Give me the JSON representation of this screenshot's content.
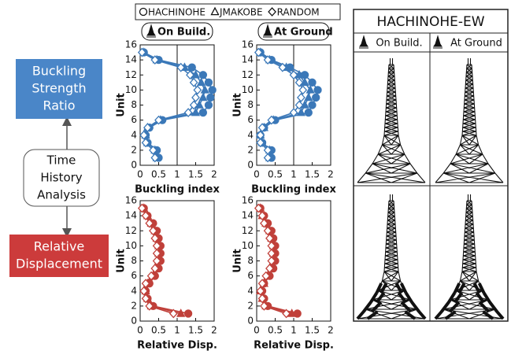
{
  "diagram": {
    "nodes": [
      {
        "label": [
          "Buckling",
          "Strength",
          "Ratio"
        ],
        "color": "#4a86c8"
      },
      {
        "label": [
          "Time",
          "History",
          "Analysis"
        ]
      },
      {
        "label": [
          "Relative",
          "Displacement"
        ],
        "color": "#cc3b3b"
      }
    ]
  },
  "chart_data": [
    {
      "type": "line",
      "title": "On Build.",
      "x_label": "Buckling index",
      "y_label": "Unit",
      "y": [
        1,
        2,
        3,
        4,
        5,
        6,
        7,
        8,
        9,
        10,
        11,
        12,
        13,
        14,
        15
      ],
      "xlim": [
        0,
        2
      ],
      "xticks": [
        0,
        0.5,
        1,
        1.5,
        2
      ],
      "ylim": [
        0,
        16
      ],
      "yticks": [
        0,
        2,
        4,
        6,
        8,
        10,
        12,
        14,
        16
      ],
      "reference_line": 1,
      "series": [
        {
          "name": "HACHINOHE",
          "color": "#3b78b8",
          "marker": "circle",
          "filled": true,
          "values": [
            0.5,
            0.45,
            0.2,
            0.15,
            0.25,
            0.6,
            1.7,
            1.85,
            1.9,
            1.95,
            1.85,
            1.7,
            1.4,
            0.5,
            0.1
          ]
        },
        {
          "name": "JMAKOBE",
          "color": "#3b78b8",
          "marker": "triangle",
          "filled": true,
          "values": [
            0.45,
            0.4,
            0.2,
            0.15,
            0.2,
            0.55,
            1.5,
            1.6,
            1.7,
            1.75,
            1.65,
            1.5,
            1.2,
            0.45,
            0.1
          ]
        },
        {
          "name": "RANDOM",
          "color": "#3b78b8",
          "marker": "diamond",
          "filled": false,
          "values": [
            0.4,
            0.35,
            0.15,
            0.1,
            0.2,
            0.5,
            1.3,
            1.45,
            1.5,
            1.55,
            1.45,
            1.35,
            1.1,
            0.4,
            0.05
          ]
        }
      ]
    },
    {
      "type": "line",
      "title": "At Ground",
      "x_label": "Buckling index",
      "y_label": "Unit",
      "y": [
        1,
        2,
        3,
        4,
        5,
        6,
        7,
        8,
        9,
        10,
        11,
        12,
        13,
        14,
        15
      ],
      "xlim": [
        0,
        2
      ],
      "xticks": [
        0,
        0.5,
        1,
        1.5,
        2
      ],
      "ylim": [
        0,
        16
      ],
      "yticks": [
        0,
        2,
        4,
        6,
        8,
        10,
        12,
        14,
        16
      ],
      "reference_line": 1,
      "series": [
        {
          "name": "HACHINOHE",
          "color": "#3b78b8",
          "marker": "circle",
          "filled": true,
          "values": [
            0.4,
            0.4,
            0.15,
            0.1,
            0.2,
            0.5,
            1.4,
            1.5,
            1.6,
            1.65,
            1.5,
            1.3,
            0.9,
            0.4,
            0.1
          ]
        },
        {
          "name": "JMAKOBE",
          "color": "#3b78b8",
          "marker": "triangle",
          "filled": true,
          "values": [
            0.35,
            0.35,
            0.15,
            0.1,
            0.2,
            0.45,
            1.2,
            1.3,
            1.4,
            1.45,
            1.3,
            1.15,
            0.8,
            0.35,
            0.1
          ]
        },
        {
          "name": "RANDOM",
          "color": "#3b78b8",
          "marker": "diamond",
          "filled": false,
          "values": [
            0.3,
            0.3,
            0.1,
            0.1,
            0.15,
            0.4,
            1.0,
            1.15,
            1.2,
            1.25,
            1.15,
            1.0,
            0.7,
            0.3,
            0.05
          ]
        }
      ]
    },
    {
      "type": "line",
      "x_label": "Relative Disp.",
      "y_label": "Unit",
      "y": [
        1,
        2,
        3,
        4,
        5,
        6,
        7,
        8,
        9,
        10,
        11,
        12,
        13,
        14,
        15
      ],
      "xlim": [
        0,
        2
      ],
      "xticks": [
        0,
        0.5,
        1,
        1.5,
        2
      ],
      "ylim": [
        0,
        16
      ],
      "yticks": [
        0,
        2,
        4,
        6,
        8,
        10,
        12,
        14,
        16
      ],
      "series": [
        {
          "name": "HACHINOHE",
          "color": "#c0403a",
          "marker": "circle",
          "filled": true,
          "values": [
            1.3,
            0.35,
            0.2,
            0.15,
            0.25,
            0.4,
            0.5,
            0.55,
            0.55,
            0.55,
            0.5,
            0.45,
            0.35,
            0.2,
            0.1
          ]
        },
        {
          "name": "JMAKOBE",
          "color": "#c0403a",
          "marker": "triangle",
          "filled": true,
          "values": [
            1.1,
            0.3,
            0.2,
            0.15,
            0.2,
            0.35,
            0.45,
            0.5,
            0.5,
            0.5,
            0.45,
            0.4,
            0.3,
            0.2,
            0.1
          ]
        },
        {
          "name": "RANDOM",
          "color": "#c0403a",
          "marker": "diamond",
          "filled": false,
          "values": [
            0.9,
            0.25,
            0.15,
            0.1,
            0.15,
            0.3,
            0.4,
            0.45,
            0.45,
            0.45,
            0.4,
            0.35,
            0.25,
            0.15,
            0.05
          ]
        }
      ]
    },
    {
      "type": "line",
      "x_label": "Relative Disp.",
      "y_label": "Unit",
      "y": [
        1,
        2,
        3,
        4,
        5,
        6,
        7,
        8,
        9,
        10,
        11,
        12,
        13,
        14,
        15
      ],
      "xlim": [
        0,
        2
      ],
      "xticks": [
        0,
        0.5,
        1,
        1.5,
        2
      ],
      "ylim": [
        0,
        16
      ],
      "yticks": [
        0,
        2,
        4,
        6,
        8,
        10,
        12,
        14,
        16
      ],
      "series": [
        {
          "name": "HACHINOHE",
          "color": "#c0403a",
          "marker": "circle",
          "filled": true,
          "values": [
            1.1,
            0.3,
            0.2,
            0.15,
            0.2,
            0.35,
            0.45,
            0.5,
            0.5,
            0.5,
            0.45,
            0.4,
            0.3,
            0.2,
            0.1
          ]
        },
        {
          "name": "JMAKOBE",
          "color": "#c0403a",
          "marker": "triangle",
          "filled": true,
          "values": [
            0.95,
            0.25,
            0.15,
            0.1,
            0.2,
            0.3,
            0.4,
            0.45,
            0.45,
            0.45,
            0.4,
            0.35,
            0.25,
            0.15,
            0.1
          ]
        },
        {
          "name": "RANDOM",
          "color": "#c0403a",
          "marker": "diamond",
          "filled": false,
          "values": [
            0.8,
            0.2,
            0.15,
            0.1,
            0.15,
            0.25,
            0.35,
            0.4,
            0.4,
            0.4,
            0.35,
            0.3,
            0.2,
            0.15,
            0.05
          ]
        }
      ]
    }
  ],
  "panel": {
    "title": "HACHINOHE-EW",
    "columns": [
      "On Build.",
      "At Ground"
    ]
  }
}
